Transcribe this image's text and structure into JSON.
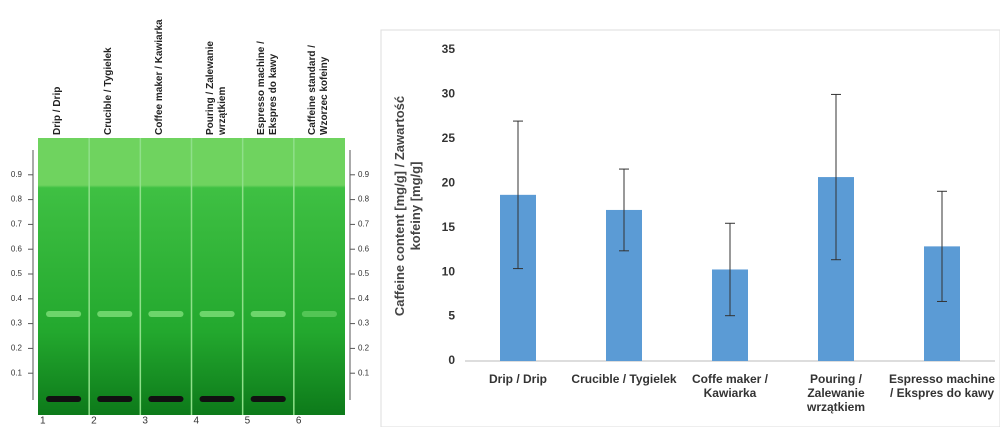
{
  "plate": {
    "lane_labels": [
      "Drip / Drip",
      "Crucible / Tygielek",
      "Coffee maker / Kawiarka",
      "Pouring / Zalewanie wrzątkiem",
      "Espresso machine / Ekspres do kawy",
      "Caffeine standard / Wzorzec kofeiny"
    ],
    "lane_numbers": [
      1,
      2,
      3,
      4,
      5,
      6
    ],
    "rf_ticks": [
      0.1,
      0.2,
      0.3,
      0.4,
      0.5,
      0.6,
      0.7,
      0.8,
      0.9
    ]
  },
  "chart_data": {
    "type": "bar",
    "y_label": "Caffeine content [mg/g] / Zawartość kofeiny [mg/g]",
    "categories": [
      "Drip / Drip",
      "Crucible / Tygielek",
      "Coffe maker / Kawiarka",
      "Pouring / Zalewanie wrzątkiem",
      "Espresso machine / Ekspres do kawy"
    ],
    "values": [
      18.7,
      17.0,
      10.3,
      20.7,
      12.9
    ],
    "errors": [
      8.3,
      4.6,
      5.2,
      9.3,
      6.2
    ],
    "color": "#5b9bd5",
    "ylim": [
      0,
      35
    ],
    "yticks": [
      0,
      5,
      10,
      15,
      20,
      25,
      30,
      35
    ],
    "grid": false
  }
}
